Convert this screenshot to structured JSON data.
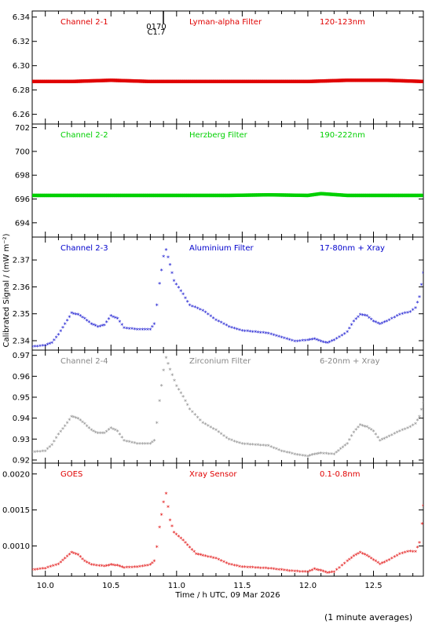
{
  "figure": {
    "ylabel": "Calibrated Signal / (mW m⁻²)",
    "xlabel": "Time / h UTC, 09 Mar 2026",
    "footnote": "(1 minute averages)",
    "flare_marks": [
      "C1.7",
      "0170"
    ]
  },
  "chart_data": [
    {
      "type": "scatter",
      "channel": "Channel 2-1",
      "filter": "Lyman-alpha Filter",
      "band": "120-123nm",
      "color": "#e00000",
      "xlim": [
        9.9,
        12.88
      ],
      "ylim": [
        6.252,
        6.345
      ],
      "yticks": [
        6.26,
        6.28,
        6.3,
        6.32,
        6.34
      ],
      "ytick_labels": [
        "6.26",
        "6.28",
        "6.30",
        "6.32",
        "6.34"
      ],
      "points": [
        [
          9.9,
          6.287
        ],
        [
          10.2,
          6.287
        ],
        [
          10.5,
          6.288
        ],
        [
          10.8,
          6.287
        ],
        [
          11.1,
          6.287
        ],
        [
          11.4,
          6.287
        ],
        [
          11.7,
          6.287
        ],
        [
          12.0,
          6.287
        ],
        [
          12.3,
          6.288
        ],
        [
          12.6,
          6.288
        ],
        [
          12.88,
          6.287
        ]
      ]
    },
    {
      "type": "scatter",
      "channel": "Channel 2-2",
      "filter": "Herzberg Filter",
      "band": "190-222nm",
      "color": "#00d000",
      "xlim": [
        9.9,
        12.88
      ],
      "ylim": [
        692.8,
        702.3
      ],
      "yticks": [
        694,
        696,
        698,
        700,
        702
      ],
      "ytick_labels": [
        "694",
        "696",
        "698",
        "700",
        "702"
      ],
      "points": [
        [
          9.9,
          696.3
        ],
        [
          10.2,
          696.3
        ],
        [
          10.5,
          696.3
        ],
        [
          10.8,
          696.3
        ],
        [
          11.1,
          696.3
        ],
        [
          11.4,
          696.3
        ],
        [
          11.7,
          696.35
        ],
        [
          12.0,
          696.3
        ],
        [
          12.1,
          696.45
        ],
        [
          12.3,
          696.3
        ],
        [
          12.6,
          696.3
        ],
        [
          12.88,
          696.3
        ]
      ]
    },
    {
      "type": "scatter",
      "channel": "Channel 2-3",
      "filter": "Aluminium Filter",
      "band": "17-80nm + Xray",
      "color": "#0000cc",
      "xlim": [
        9.9,
        12.88
      ],
      "ylim": [
        2.3365,
        2.3785
      ],
      "yticks": [
        2.34,
        2.35,
        2.36,
        2.37
      ],
      "ytick_labels": [
        "2.34",
        "2.35",
        "2.36",
        "2.37"
      ],
      "points": [
        [
          9.9,
          2.3375
        ],
        [
          10.0,
          2.338
        ],
        [
          10.05,
          2.339
        ],
        [
          10.1,
          2.342
        ],
        [
          10.15,
          2.346
        ],
        [
          10.2,
          2.35
        ],
        [
          10.25,
          2.3495
        ],
        [
          10.3,
          2.348
        ],
        [
          10.35,
          2.346
        ],
        [
          10.4,
          2.345
        ],
        [
          10.45,
          2.3455
        ],
        [
          10.5,
          2.349
        ],
        [
          10.55,
          2.348
        ],
        [
          10.6,
          2.3445
        ],
        [
          10.7,
          2.344
        ],
        [
          10.8,
          2.344
        ],
        [
          10.83,
          2.346
        ],
        [
          10.85,
          2.353
        ],
        [
          10.87,
          2.361
        ],
        [
          10.9,
          2.371
        ],
        [
          10.92,
          2.3735
        ],
        [
          10.95,
          2.368
        ],
        [
          10.98,
          2.362
        ],
        [
          11.05,
          2.357
        ],
        [
          11.1,
          2.353
        ],
        [
          11.2,
          2.351
        ],
        [
          11.3,
          2.3475
        ],
        [
          11.4,
          2.345
        ],
        [
          11.5,
          2.3435
        ],
        [
          11.6,
          2.343
        ],
        [
          11.7,
          2.3425
        ],
        [
          11.8,
          2.341
        ],
        [
          11.9,
          2.3395
        ],
        [
          12.0,
          2.34
        ],
        [
          12.05,
          2.3405
        ],
        [
          12.1,
          2.3395
        ],
        [
          12.15,
          2.339
        ],
        [
          12.2,
          2.34
        ],
        [
          12.3,
          2.343
        ],
        [
          12.35,
          2.347
        ],
        [
          12.4,
          2.3495
        ],
        [
          12.45,
          2.349
        ],
        [
          12.5,
          2.347
        ],
        [
          12.55,
          2.346
        ],
        [
          12.6,
          2.347
        ],
        [
          12.7,
          2.3495
        ],
        [
          12.78,
          2.3505
        ],
        [
          12.82,
          2.352
        ],
        [
          12.85,
          2.356
        ],
        [
          12.88,
          2.365
        ]
      ]
    },
    {
      "type": "scatter",
      "channel": "Channel 2-4",
      "filter": "Zirconium Filter",
      "band": "6-20nm + Xray",
      "color": "#888888",
      "xlim": [
        9.9,
        12.88
      ],
      "ylim": [
        0.9185,
        0.9725
      ],
      "yticks": [
        0.92,
        0.93,
        0.94,
        0.95,
        0.96,
        0.97
      ],
      "ytick_labels": [
        "0.92",
        "0.93",
        "0.94",
        "0.95",
        "0.96",
        "0.97"
      ],
      "points": [
        [
          9.9,
          0.9235
        ],
        [
          10.0,
          0.924
        ],
        [
          10.05,
          0.927
        ],
        [
          10.1,
          0.932
        ],
        [
          10.15,
          0.936
        ],
        [
          10.2,
          0.9405
        ],
        [
          10.25,
          0.9395
        ],
        [
          10.3,
          0.937
        ],
        [
          10.35,
          0.934
        ],
        [
          10.4,
          0.9325
        ],
        [
          10.45,
          0.9325
        ],
        [
          10.5,
          0.935
        ],
        [
          10.55,
          0.9335
        ],
        [
          10.6,
          0.929
        ],
        [
          10.7,
          0.9275
        ],
        [
          10.8,
          0.9275
        ],
        [
          10.83,
          0.929
        ],
        [
          10.85,
          0.9375
        ],
        [
          10.87,
          0.948
        ],
        [
          10.9,
          0.9625
        ],
        [
          10.92,
          0.9685
        ],
        [
          10.95,
          0.963
        ],
        [
          11.0,
          0.955
        ],
        [
          11.05,
          0.95
        ],
        [
          11.1,
          0.944
        ],
        [
          11.2,
          0.9375
        ],
        [
          11.3,
          0.934
        ],
        [
          11.4,
          0.9295
        ],
        [
          11.5,
          0.9275
        ],
        [
          11.6,
          0.927
        ],
        [
          11.7,
          0.9265
        ],
        [
          11.8,
          0.924
        ],
        [
          11.9,
          0.9225
        ],
        [
          12.0,
          0.9215
        ],
        [
          12.05,
          0.9225
        ],
        [
          12.1,
          0.923
        ],
        [
          12.2,
          0.9225
        ],
        [
          12.25,
          0.925
        ],
        [
          12.3,
          0.9275
        ],
        [
          12.35,
          0.933
        ],
        [
          12.4,
          0.9365
        ],
        [
          12.45,
          0.9355
        ],
        [
          12.5,
          0.9335
        ],
        [
          12.55,
          0.929
        ],
        [
          12.6,
          0.9305
        ],
        [
          12.7,
          0.9335
        ],
        [
          12.78,
          0.9355
        ],
        [
          12.82,
          0.937
        ],
        [
          12.85,
          0.9405
        ],
        [
          12.88,
          0.947
        ]
      ]
    },
    {
      "type": "scatter",
      "channel": "GOES",
      "filter": "Xray Sensor",
      "band": "0.1-0.8nm",
      "color": "#e00000",
      "xlim": [
        9.9,
        12.88
      ],
      "ylim": [
        0.00058,
        0.00215
      ],
      "yticks": [
        0.001,
        0.0015,
        0.002
      ],
      "ytick_labels": [
        "0.0010",
        "0.0015",
        "0.0020"
      ],
      "points": [
        [
          9.9,
          0.00066
        ],
        [
          10.0,
          0.00068
        ],
        [
          10.1,
          0.00074
        ],
        [
          10.15,
          0.00082
        ],
        [
          10.2,
          0.0009
        ],
        [
          10.25,
          0.00087
        ],
        [
          10.3,
          0.00078
        ],
        [
          10.35,
          0.00073
        ],
        [
          10.45,
          0.00071
        ],
        [
          10.5,
          0.00073
        ],
        [
          10.55,
          0.00072
        ],
        [
          10.6,
          0.00069
        ],
        [
          10.7,
          0.0007
        ],
        [
          10.8,
          0.00073
        ],
        [
          10.83,
          0.00078
        ],
        [
          10.85,
          0.00098
        ],
        [
          10.87,
          0.00125
        ],
        [
          10.9,
          0.0016
        ],
        [
          10.92,
          0.00172
        ],
        [
          10.95,
          0.00135
        ],
        [
          10.98,
          0.00118
        ],
        [
          11.05,
          0.00107
        ],
        [
          11.1,
          0.00097
        ],
        [
          11.15,
          0.00088
        ],
        [
          11.2,
          0.00086
        ],
        [
          11.3,
          0.00082
        ],
        [
          11.4,
          0.00074
        ],
        [
          11.5,
          0.0007
        ],
        [
          11.6,
          0.00069
        ],
        [
          11.7,
          0.00068
        ],
        [
          11.8,
          0.00066
        ],
        [
          11.9,
          0.00064
        ],
        [
          12.0,
          0.00063
        ],
        [
          12.05,
          0.00067
        ],
        [
          12.1,
          0.00065
        ],
        [
          12.15,
          0.00062
        ],
        [
          12.2,
          0.00063
        ],
        [
          12.3,
          0.00078
        ],
        [
          12.35,
          0.00085
        ],
        [
          12.4,
          0.0009
        ],
        [
          12.45,
          0.00086
        ],
        [
          12.5,
          0.0008
        ],
        [
          12.55,
          0.00074
        ],
        [
          12.6,
          0.00078
        ],
        [
          12.7,
          0.00088
        ],
        [
          12.78,
          0.00092
        ],
        [
          12.82,
          0.00091
        ],
        [
          12.85,
          0.00104
        ],
        [
          12.87,
          0.0013
        ],
        [
          12.88,
          0.00155
        ]
      ]
    }
  ]
}
